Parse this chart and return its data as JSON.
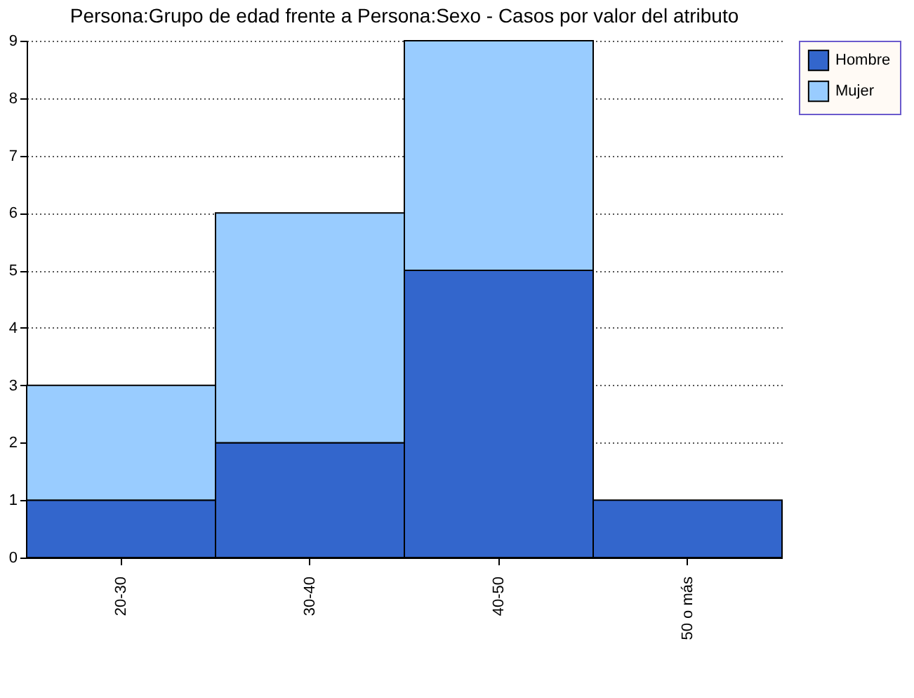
{
  "chart_data": {
    "type": "bar",
    "title": "Persona:Grupo de edad frente a Persona:Sexo - Casos por valor del atributo",
    "categories": [
      "20-30",
      "30-40",
      "40-50",
      "50 o más"
    ],
    "series": [
      {
        "name": "Hombre",
        "color": "#3366cc",
        "values": [
          1,
          2,
          5,
          1
        ]
      },
      {
        "name": "Mujer",
        "color": "#99ccff",
        "values": [
          2,
          4,
          4,
          null
        ]
      }
    ],
    "stacked": true,
    "ylim": [
      0,
      9
    ],
    "yticks": [
      0,
      1,
      2,
      3,
      4,
      5,
      6,
      7,
      8,
      9
    ],
    "grid": "y",
    "legend": "top right"
  }
}
